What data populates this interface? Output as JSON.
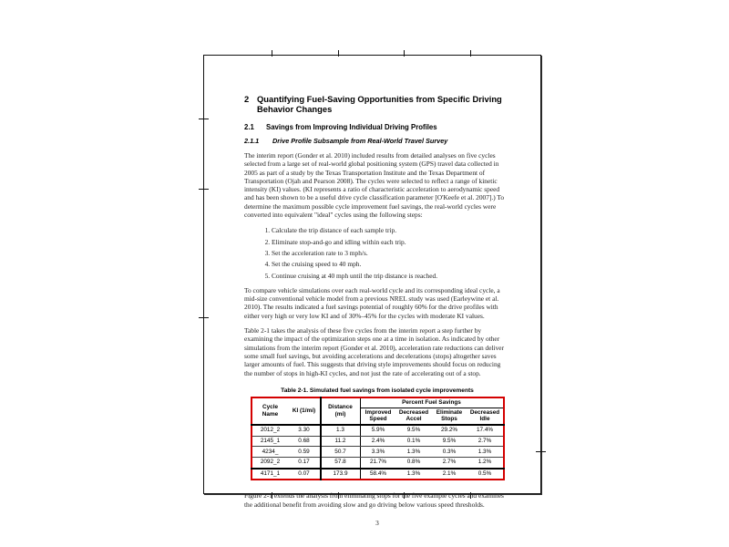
{
  "page": {
    "number": "3",
    "heading": {
      "number": "2",
      "text": "Quantifying Fuel-Saving Opportunities from Specific Driving Behavior Changes"
    },
    "subheading": {
      "number": "2.1",
      "text": "Savings from Improving Individual Driving Profiles"
    },
    "subsubheading": {
      "number": "2.1.1",
      "text": "Drive Profile Subsample from Real-World Travel Survey"
    },
    "para1": "The interim report (Gonder et al. 2010) included results from detailed analyses on five cycles selected from a large set of real-world global positioning system (GPS) travel data collected in 2005 as part of a study by the Texas Transportation Institute and the Texas Department of Transportation (Ojah and Pearson 2008). The cycles were selected to reflect a range of kinetic intensity (KI) values. (KI represents a ratio of characteristic acceleration to aerodynamic speed and has been shown to be a useful drive cycle classification parameter [O'Keefe et al. 2007].) To determine the maximum possible cycle improvement fuel savings, the real-world cycles were converted into equivalent \"ideal\" cycles using the following steps:",
    "steps": [
      "Calculate the trip distance of each sample trip.",
      "Eliminate stop-and-go and idling within each trip.",
      "Set the acceleration rate to 3 mph/s.",
      "Set the cruising speed to 40 mph.",
      "Continue cruising at 40 mph until the trip distance is reached."
    ],
    "para2": "To compare vehicle simulations over each real-world cycle and its corresponding ideal cycle, a mid-size conventional vehicle model from a previous NREL study was used (Earleywine et al. 2010). The results indicated a fuel savings potential of roughly 60% for the drive profiles with either very high or very low KI and of 30%–45% for the cycles with moderate KI values.",
    "para3": "Table 2-1 takes the analysis of these five cycles from the interim report a step further by examining the impact of the optimization steps one at a time in isolation. As indicated by other simulations from the interim report (Gonder et al. 2010), acceleration rate reductions can deliver some small fuel savings, but avoiding accelerations and decelerations (stops) altogether saves larger amounts of fuel. This suggests that driving style improvements should focus on reducing the number of stops in high-KI cycles, and not just the rate of accelerating out of a stop.",
    "table": {
      "title": "Table 2-1. Simulated fuel savings from isolated cycle improvements",
      "group_header": "Percent Fuel Savings",
      "col_cycle": "Cycle Name",
      "col_ki": "KI (1/mi)",
      "col_distance": "Distance (mi)",
      "col_improved_speed": "Improved Speed",
      "col_decreased_accel": "Decreased Accel",
      "col_eliminate_stops": "Eliminate Stops",
      "col_decreased_idle": "Decreased Idle",
      "accent_border_color": "#d40000",
      "rows": [
        [
          "2012_2",
          "3.30",
          "1.3",
          "5.9%",
          "9.5%",
          "29.2%",
          "17.4%"
        ],
        [
          "2145_1",
          "0.68",
          "11.2",
          "2.4%",
          "0.1%",
          "9.5%",
          "2.7%"
        ],
        [
          "4234_",
          "0.59",
          "50.7",
          "3.3%",
          "1.3%",
          "0.3%",
          "1.3%"
        ],
        [
          "2092_2",
          "0.17",
          "57.8",
          "21.7%",
          "0.8%",
          "2.7%",
          "1.2%"
        ],
        [
          "4171_1",
          "0.07",
          "173.9",
          "58.4%",
          "1.3%",
          "2.1%",
          "0.5%"
        ]
      ]
    },
    "para4": "Figure 2-1 extends the analysis from eliminating stops for the five example cycles and examines the additional benefit from avoiding slow and go driving below various speed thresholds."
  }
}
